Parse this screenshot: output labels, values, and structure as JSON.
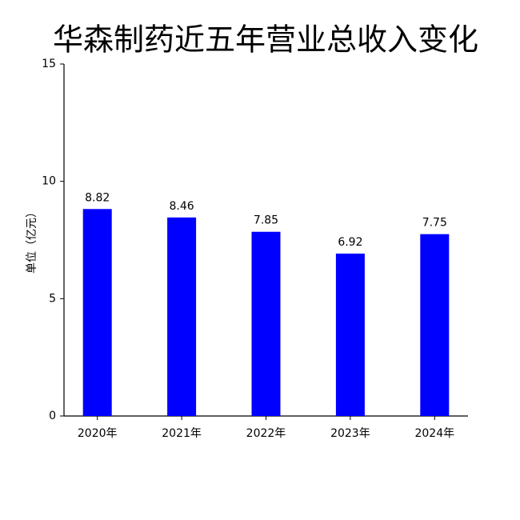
{
  "chart_data": {
    "type": "bar",
    "title": "华森制药近五年营业总收入变化",
    "y_label": "单位（亿元）",
    "categories": [
      "2020年",
      "2021年",
      "2022年",
      "2023年",
      "2024年"
    ],
    "values": [
      8.82,
      8.46,
      7.85,
      6.92,
      7.75
    ],
    "color": "#0000ff",
    "ylim": [
      0,
      15
    ],
    "yticks": [
      0,
      5,
      10,
      15
    ],
    "grid": false
  }
}
